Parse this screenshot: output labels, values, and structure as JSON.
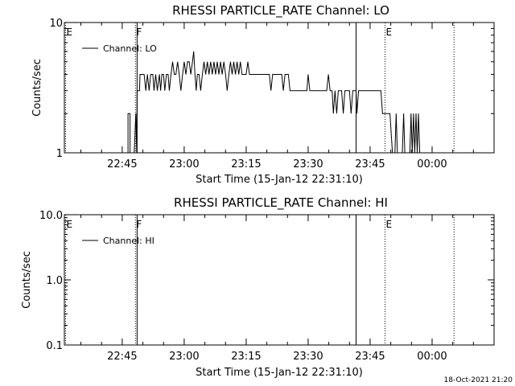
{
  "footer": {
    "timestamp": "18-Oct-2021 21:20"
  },
  "chart_data": [
    {
      "type": "line",
      "title": "RHESSI PARTICLE_RATE Channel: LO",
      "xlabel": "Start Time (15-Jan-12 22:31:10)",
      "ylabel": "Counts/sec",
      "yscale": "log",
      "ylim": [
        1,
        10
      ],
      "xlim_minutes": [
        0,
        104
      ],
      "yticks": [
        {
          "v": 1,
          "label": "1"
        },
        {
          "v": 10,
          "label": "10"
        }
      ],
      "xticks": [
        {
          "t": 14,
          "label": "22:45"
        },
        {
          "t": 29,
          "label": "23:00"
        },
        {
          "t": 44,
          "label": "23:15"
        },
        {
          "t": 59,
          "label": "23:30"
        },
        {
          "t": 74,
          "label": "23:45"
        },
        {
          "t": 89,
          "label": "00:00"
        }
      ],
      "legend": {
        "label": "Channel: LO",
        "position": "top-left"
      },
      "markers": [
        {
          "t": 0.3,
          "label": "E",
          "style": "dotted"
        },
        {
          "t": 17.2,
          "label": "F",
          "style": "dotted"
        },
        {
          "t": 17.6,
          "label": "",
          "style": "solid"
        },
        {
          "t": 70.6,
          "label": "",
          "style": "solid"
        },
        {
          "t": 77.6,
          "label": "E",
          "style": "dotted"
        },
        {
          "t": 94.3,
          "label": "",
          "style": "dotted"
        }
      ],
      "series": [
        {
          "name": "Channel: LO",
          "points": [
            [
              15.4,
              1
            ],
            [
              15.4,
              2
            ],
            [
              15.9,
              2
            ],
            [
              15.9,
              1
            ],
            [
              16.9,
              1
            ],
            [
              17.3,
              2
            ],
            [
              17.5,
              1
            ],
            [
              17.6,
              3
            ],
            [
              18.2,
              3
            ],
            [
              18.3,
              4
            ],
            [
              19.3,
              4
            ],
            [
              19.7,
              3
            ],
            [
              20.1,
              4
            ],
            [
              20.5,
              3
            ],
            [
              20.9,
              4
            ],
            [
              21.4,
              4
            ],
            [
              21.7,
              3
            ],
            [
              22.1,
              4
            ],
            [
              22.5,
              3
            ],
            [
              23.0,
              4
            ],
            [
              23.3,
              3
            ],
            [
              23.6,
              4
            ],
            [
              24.0,
              4
            ],
            [
              24.3,
              3
            ],
            [
              24.7,
              4
            ],
            [
              25.1,
              4
            ],
            [
              25.4,
              3
            ],
            [
              25.8,
              4
            ],
            [
              26.2,
              5
            ],
            [
              26.6,
              4
            ],
            [
              27.0,
              4
            ],
            [
              27.4,
              5
            ],
            [
              27.8,
              4
            ],
            [
              28.2,
              3
            ],
            [
              28.6,
              4
            ],
            [
              29.0,
              5
            ],
            [
              29.4,
              4
            ],
            [
              29.8,
              5
            ],
            [
              30.2,
              5
            ],
            [
              30.6,
              4
            ],
            [
              31.0,
              5
            ],
            [
              31.3,
              6
            ],
            [
              31.6,
              4
            ],
            [
              31.9,
              3
            ],
            [
              32.2,
              4
            ],
            [
              32.6,
              4
            ],
            [
              33.0,
              3
            ],
            [
              33.4,
              4
            ],
            [
              33.8,
              5
            ],
            [
              34.2,
              4
            ],
            [
              34.6,
              5
            ],
            [
              35.0,
              4
            ],
            [
              35.4,
              5
            ],
            [
              35.8,
              4
            ],
            [
              36.2,
              5
            ],
            [
              36.6,
              4
            ],
            [
              37.0,
              5
            ],
            [
              37.4,
              4
            ],
            [
              37.8,
              5
            ],
            [
              38.2,
              4
            ],
            [
              38.6,
              5
            ],
            [
              39.0,
              4
            ],
            [
              39.4,
              3
            ],
            [
              39.8,
              4
            ],
            [
              40.2,
              5
            ],
            [
              40.6,
              4
            ],
            [
              41.0,
              5
            ],
            [
              41.4,
              4
            ],
            [
              41.8,
              5
            ],
            [
              42.2,
              4
            ],
            [
              42.6,
              5
            ],
            [
              43.0,
              4
            ],
            [
              44.0,
              4
            ],
            [
              44.4,
              5
            ],
            [
              44.8,
              4
            ],
            [
              49.6,
              4
            ],
            [
              50.0,
              3
            ],
            [
              50.4,
              4
            ],
            [
              52.6,
              4
            ],
            [
              53.0,
              3
            ],
            [
              53.4,
              4
            ],
            [
              54.2,
              4
            ],
            [
              54.6,
              3
            ],
            [
              58.7,
              3
            ],
            [
              59.0,
              4
            ],
            [
              59.4,
              3
            ],
            [
              63.5,
              3
            ],
            [
              63.9,
              4
            ],
            [
              64.3,
              3
            ],
            [
              64.8,
              3
            ],
            [
              65.1,
              2
            ],
            [
              65.5,
              3
            ],
            [
              65.9,
              2
            ],
            [
              66.3,
              3
            ],
            [
              67.1,
              3
            ],
            [
              67.5,
              2
            ],
            [
              67.9,
              3
            ],
            [
              69.0,
              3
            ],
            [
              69.4,
              2
            ],
            [
              69.8,
              3
            ],
            [
              70.6,
              3
            ],
            [
              70.8,
              2
            ],
            [
              71.2,
              3
            ],
            [
              76.6,
              3
            ],
            [
              77.0,
              2
            ],
            [
              78.8,
              2
            ],
            [
              79.4,
              1
            ],
            [
              80.0,
              1
            ],
            [
              80.3,
              2
            ],
            [
              80.6,
              1
            ],
            [
              81.8,
              1
            ],
            [
              82.1,
              2
            ],
            [
              82.4,
              1
            ],
            [
              83.6,
              1
            ],
            [
              83.9,
              2
            ],
            [
              84.2,
              1
            ],
            [
              84.5,
              2
            ],
            [
              84.8,
              1
            ],
            [
              85.1,
              2
            ],
            [
              85.4,
              1
            ],
            [
              85.7,
              2
            ],
            [
              86.0,
              1
            ]
          ]
        }
      ]
    },
    {
      "type": "line",
      "title": "RHESSI PARTICLE_RATE Channel: HI",
      "xlabel": "Start Time (15-Jan-12 22:31:10)",
      "ylabel": "Counts/sec",
      "yscale": "log",
      "ylim": [
        0.1,
        10
      ],
      "xlim_minutes": [
        0,
        104
      ],
      "yticks": [
        {
          "v": 0.1,
          "label": "0.1"
        },
        {
          "v": 1,
          "label": "1.0"
        },
        {
          "v": 10,
          "label": "10.0"
        }
      ],
      "xticks": [
        {
          "t": 14,
          "label": "22:45"
        },
        {
          "t": 29,
          "label": "23:00"
        },
        {
          "t": 44,
          "label": "23:15"
        },
        {
          "t": 59,
          "label": "23:30"
        },
        {
          "t": 74,
          "label": "23:45"
        },
        {
          "t": 89,
          "label": "00:00"
        }
      ],
      "legend": {
        "label": "Channel: HI",
        "position": "top-left"
      },
      "markers": [
        {
          "t": 0.3,
          "label": "E",
          "style": "dotted"
        },
        {
          "t": 17.2,
          "label": "F",
          "style": "dotted"
        },
        {
          "t": 17.6,
          "label": "",
          "style": "solid"
        },
        {
          "t": 70.6,
          "label": "",
          "style": "solid"
        },
        {
          "t": 77.6,
          "label": "E",
          "style": "dotted"
        },
        {
          "t": 94.3,
          "label": "",
          "style": "dotted"
        }
      ],
      "series": [
        {
          "name": "Channel: HI",
          "points": []
        }
      ]
    }
  ]
}
